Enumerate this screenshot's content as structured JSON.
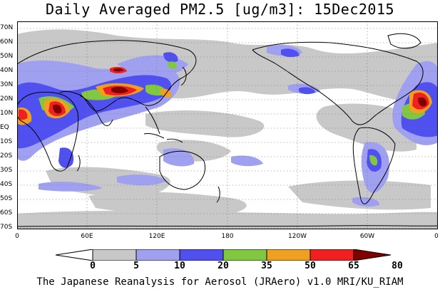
{
  "title": "Daily Averaged PM2.5 [ug/m3]: 15Dec2015",
  "footer": "The Japanese Reanalysis for Aerosol (JRAero) v1.0 MRI/KU_RIAM",
  "lat_labels": [
    "70N",
    "60N",
    "50N",
    "40N",
    "30N",
    "20N",
    "10N",
    "EQ",
    "10S",
    "20S",
    "30S",
    "40S",
    "50S",
    "60S",
    "70S"
  ],
  "lon_labels": [
    "0",
    "60E",
    "120E",
    "180",
    "120W",
    "60W",
    "0"
  ],
  "colorbar": {
    "levels": [
      "0",
      "5",
      "10",
      "20",
      "35",
      "50",
      "65",
      "80"
    ],
    "colors": [
      "#ffffff",
      "#c8c8c8",
      "#a0a0f0",
      "#5050f0",
      "#80c840",
      "#f0a020",
      "#f02020",
      "#800000"
    ]
  }
}
